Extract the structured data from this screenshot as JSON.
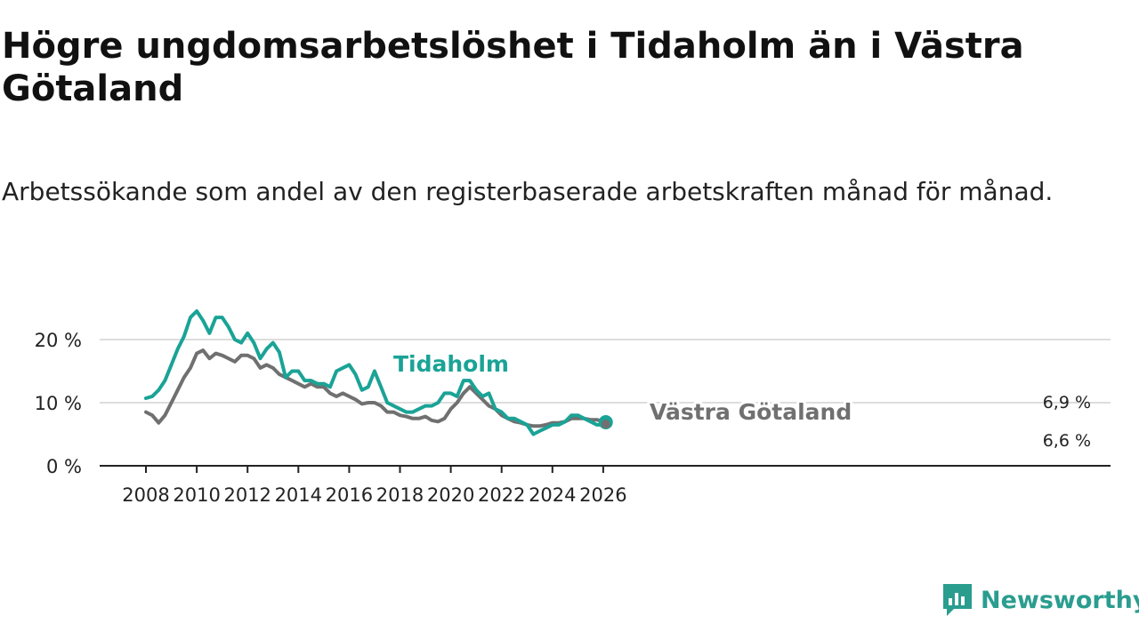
{
  "title": "Högre ungdomsarbetslöshet i Tidaholm än i Västra Götaland",
  "subtitle": "Arbetssökande som andel av den registerbaserade arbetskraften månad för månad.",
  "brand": {
    "name": "Newsworthy"
  },
  "colors": {
    "tidaholm": "#1aa396",
    "vastra_gotaland": "#707070",
    "grid": "#dddddd",
    "axis": "#222222"
  },
  "chart_data": {
    "type": "line",
    "title": "Högre ungdomsarbetslöshet i Tidaholm än i Västra Götaland",
    "xlabel": "",
    "ylabel": "",
    "xlim": [
      2007.9,
      2027.0
    ],
    "ylim": [
      0,
      20
    ],
    "yticks": [
      0,
      10,
      20
    ],
    "ytick_labels": [
      "0 %",
      "10 %",
      "20 %"
    ],
    "xticks": [
      2008,
      2010,
      2012,
      2014,
      2016,
      2018,
      2020,
      2022,
      2024,
      2026
    ],
    "xtick_labels": [
      "2008",
      "2010",
      "2012",
      "2014",
      "2016",
      "2018",
      "2020",
      "2022",
      "2024",
      "2026"
    ],
    "series": [
      {
        "name": "Tidaholm",
        "label": "Tidaholm",
        "end_label": "6,9 %",
        "x": [
          2008.0,
          2008.25,
          2008.5,
          2008.75,
          2009.0,
          2009.25,
          2009.5,
          2009.75,
          2010.0,
          2010.25,
          2010.5,
          2010.75,
          2011.0,
          2011.25,
          2011.5,
          2011.75,
          2012.0,
          2012.25,
          2012.5,
          2012.75,
          2013.0,
          2013.25,
          2013.5,
          2013.75,
          2014.0,
          2014.25,
          2014.5,
          2014.75,
          2015.0,
          2015.25,
          2015.5,
          2015.75,
          2016.0,
          2016.25,
          2016.5,
          2016.75,
          2017.0,
          2017.25,
          2017.5,
          2017.75,
          2018.0,
          2018.25,
          2018.5,
          2018.75,
          2019.0,
          2019.25,
          2019.5,
          2019.75,
          2020.0,
          2020.25,
          2020.5,
          2020.75,
          2021.0,
          2021.25,
          2021.5,
          2021.75,
          2022.0,
          2022.25,
          2022.5,
          2022.75,
          2023.0,
          2023.25,
          2023.5,
          2023.75,
          2024.0,
          2024.25,
          2024.5,
          2024.75,
          2025.0,
          2025.25,
          2025.5,
          2025.75,
          2026.0,
          2026.1
        ],
        "values": [
          10.7,
          11.0,
          12.0,
          13.5,
          16.0,
          18.5,
          20.5,
          23.5,
          24.5,
          23.0,
          21.0,
          23.5,
          23.5,
          22.0,
          20.0,
          19.5,
          21.0,
          19.5,
          17.0,
          18.5,
          19.5,
          18.0,
          14.0,
          15.0,
          15.0,
          13.5,
          13.5,
          13.0,
          13.0,
          12.5,
          15.0,
          15.5,
          16.0,
          14.5,
          12.0,
          12.5,
          15.0,
          12.5,
          10.0,
          9.5,
          9.0,
          8.5,
          8.5,
          9.0,
          9.5,
          9.5,
          10.0,
          11.5,
          11.5,
          11.0,
          13.5,
          13.5,
          12.0,
          11.0,
          11.5,
          9.0,
          8.5,
          7.5,
          7.5,
          7.0,
          6.5,
          5.0,
          5.5,
          6.0,
          6.5,
          6.5,
          7.0,
          8.0,
          8.0,
          7.5,
          7.0,
          6.5,
          6.5,
          6.9
        ]
      },
      {
        "name": "Västra Götaland",
        "label": "Västra Götaland",
        "end_label": "6,6 %",
        "x": [
          2008.0,
          2008.25,
          2008.5,
          2008.75,
          2009.0,
          2009.25,
          2009.5,
          2009.75,
          2010.0,
          2010.25,
          2010.5,
          2010.75,
          2011.0,
          2011.25,
          2011.5,
          2011.75,
          2012.0,
          2012.25,
          2012.5,
          2012.75,
          2013.0,
          2013.25,
          2013.5,
          2013.75,
          2014.0,
          2014.25,
          2014.5,
          2014.75,
          2015.0,
          2015.25,
          2015.5,
          2015.75,
          2016.0,
          2016.25,
          2016.5,
          2016.75,
          2017.0,
          2017.25,
          2017.5,
          2017.75,
          2018.0,
          2018.25,
          2018.5,
          2018.75,
          2019.0,
          2019.25,
          2019.5,
          2019.75,
          2020.0,
          2020.25,
          2020.5,
          2020.75,
          2021.0,
          2021.25,
          2021.5,
          2021.75,
          2022.0,
          2022.25,
          2022.5,
          2022.75,
          2023.0,
          2023.25,
          2023.5,
          2023.75,
          2024.0,
          2024.25,
          2024.5,
          2024.75,
          2025.0,
          2025.25,
          2025.5,
          2025.75,
          2026.0,
          2026.1
        ],
        "values": [
          8.5,
          8.0,
          6.8,
          8.0,
          10.0,
          12.0,
          14.0,
          15.5,
          17.8,
          18.3,
          17.0,
          17.8,
          17.5,
          17.0,
          16.5,
          17.5,
          17.5,
          17.0,
          15.5,
          16.0,
          15.5,
          14.5,
          14.0,
          13.5,
          13.0,
          12.5,
          13.0,
          12.5,
          12.5,
          11.5,
          11.0,
          11.5,
          11.0,
          10.5,
          9.8,
          10.0,
          10.0,
          9.5,
          8.5,
          8.5,
          8.0,
          7.8,
          7.5,
          7.5,
          7.8,
          7.2,
          7.0,
          7.5,
          9.0,
          10.0,
          11.5,
          12.5,
          11.5,
          10.5,
          9.5,
          9.0,
          8.0,
          7.5,
          7.0,
          6.8,
          6.5,
          6.3,
          6.3,
          6.5,
          6.8,
          6.8,
          7.0,
          7.5,
          7.5,
          7.5,
          7.3,
          7.3,
          7.0,
          6.6
        ]
      }
    ]
  }
}
